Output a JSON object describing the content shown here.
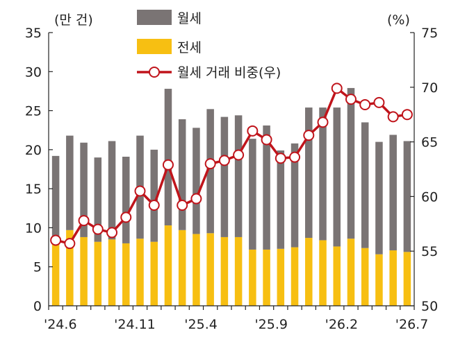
{
  "chart_data": {
    "type": "bar",
    "title": "",
    "unit_left": "(만 건)",
    "unit_right": "(%)",
    "categories": [
      "'24.6",
      "'24.7",
      "'24.8",
      "'24.9",
      "'24.10",
      "'24.11",
      "'24.12",
      "'25.1",
      "'25.2",
      "'25.3",
      "'25.4",
      "'25.5",
      "'25.6",
      "'25.7",
      "'25.8",
      "'25.9",
      "'25.10",
      "'25.11",
      "'25.12",
      "'26.1",
      "'26.2",
      "'26.3",
      "'26.4",
      "'26.5",
      "'26.6",
      "'26.7"
    ],
    "x_tick_labels": [
      "'24.6",
      "'24.11",
      "'25.4",
      "'25.9",
      "'26.2",
      "'26.7"
    ],
    "x_tick_indices": [
      0,
      5,
      10,
      15,
      20,
      25
    ],
    "ylim_left": [
      0,
      35
    ],
    "yticks_left": [
      0,
      5,
      10,
      15,
      20,
      25,
      30,
      35
    ],
    "ylim_right": [
      50,
      75
    ],
    "yticks_right": [
      50,
      55,
      60,
      65,
      70,
      75
    ],
    "series": [
      {
        "name": "월세",
        "type": "stacked-bar",
        "color": "#7a7474",
        "values": [
          10.4,
          12.1,
          12.1,
          10.8,
          12.6,
          11.1,
          13.2,
          11.8,
          17.5,
          14.2,
          13.6,
          15.9,
          15.4,
          15.6,
          14.2,
          15.9,
          12.6,
          13.3,
          16.7,
          17.0,
          17.8,
          19.3,
          16.1,
          14.4,
          14.8,
          14.2
        ]
      },
      {
        "name": "전세",
        "type": "stacked-bar",
        "color": "#f7bf12",
        "values": [
          8.8,
          9.7,
          8.8,
          8.2,
          8.5,
          8.0,
          8.6,
          8.2,
          10.3,
          9.7,
          9.2,
          9.3,
          8.8,
          8.8,
          7.2,
          7.2,
          7.3,
          7.5,
          8.7,
          8.4,
          7.6,
          8.6,
          7.4,
          6.6,
          7.1,
          6.9
        ]
      },
      {
        "name": "월세 거래 비중(우)",
        "type": "line",
        "axis": "right",
        "color": "#c0141b",
        "values": [
          56.0,
          55.7,
          57.8,
          57.0,
          56.7,
          58.1,
          60.5,
          59.2,
          62.9,
          59.2,
          59.8,
          63.0,
          63.3,
          63.8,
          66.0,
          65.2,
          63.5,
          63.6,
          65.6,
          66.8,
          69.9,
          68.9,
          68.4,
          68.6,
          67.3,
          67.5
        ]
      }
    ],
    "legend_position": "top-center",
    "grid": false
  }
}
